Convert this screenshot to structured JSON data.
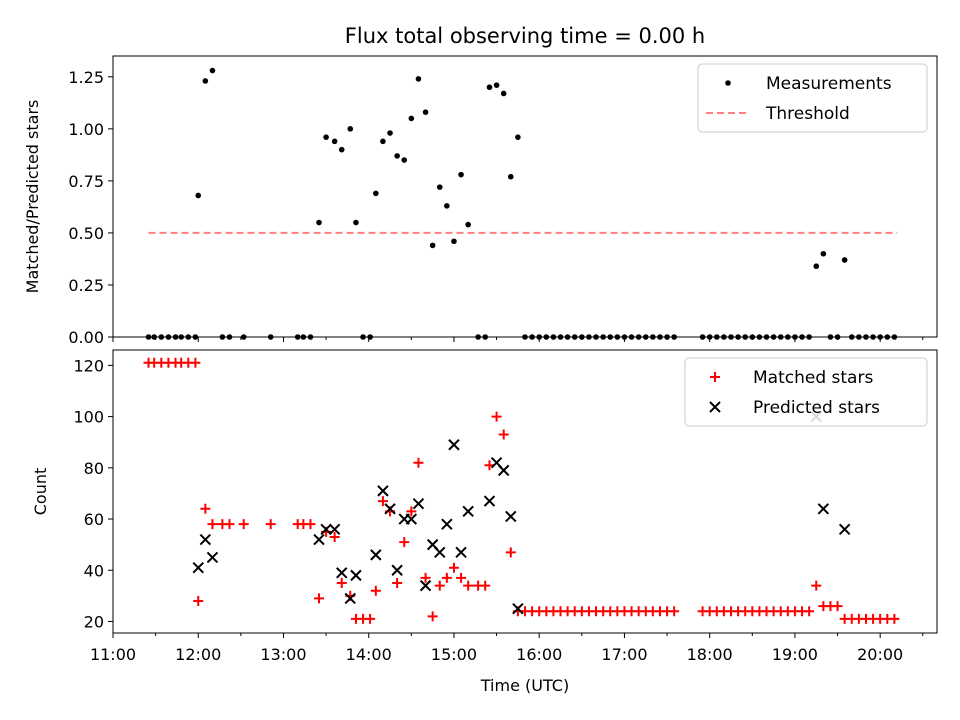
{
  "title": "Flux total observing time = 0.00 h",
  "colors": {
    "measurement": "#000000",
    "threshold": "#ff7f7f",
    "matched": "#ff0000",
    "predicted": "#000000"
  },
  "chart_data": [
    {
      "type": "scatter",
      "title": "Flux total observing time = 0.00 h",
      "xlabel": "",
      "ylabel": "Matched/Predicted stars",
      "xlim": [
        "11:00",
        "20:40"
      ],
      "ylim": [
        0,
        1.35
      ],
      "yticks": [
        "0.00",
        "0.25",
        "0.50",
        "0.75",
        "1.00",
        "1.25"
      ],
      "legend": {
        "placement": "top-right",
        "entries": [
          "Measurements",
          "Threshold"
        ]
      },
      "threshold": {
        "name": "Threshold",
        "value": 0.5,
        "x_start": "11:25",
        "x_end": "20:12"
      },
      "series": [
        {
          "name": "Measurements",
          "marker": "dot",
          "points": [
            [
              "11:25",
              0
            ],
            [
              "11:29",
              0
            ],
            [
              "11:34",
              0
            ],
            [
              "11:39",
              0
            ],
            [
              "11:44",
              0
            ],
            [
              "11:48",
              0
            ],
            [
              "11:53",
              0
            ],
            [
              "11:58",
              0
            ],
            [
              "12:00",
              0.68
            ],
            [
              "12:05",
              1.23
            ],
            [
              "12:10",
              1.28
            ],
            [
              "12:17",
              0
            ],
            [
              "12:22",
              0
            ],
            [
              "12:32",
              0
            ],
            [
              "12:51",
              0
            ],
            [
              "13:10",
              0
            ],
            [
              "13:14",
              0
            ],
            [
              "13:19",
              0
            ],
            [
              "13:25",
              0.55
            ],
            [
              "13:30",
              0.96
            ],
            [
              "13:36",
              0.94
            ],
            [
              "13:41",
              0.9
            ],
            [
              "13:47",
              1.0
            ],
            [
              "13:51",
              0.55
            ],
            [
              "13:56",
              0
            ],
            [
              "14:01",
              0
            ],
            [
              "14:05",
              0.69
            ],
            [
              "14:10",
              0.94
            ],
            [
              "14:15",
              0.98
            ],
            [
              "14:20",
              0.87
            ],
            [
              "14:25",
              0.85
            ],
            [
              "14:30",
              1.05
            ],
            [
              "14:35",
              1.24
            ],
            [
              "14:40",
              1.08
            ],
            [
              "14:45",
              0.44
            ],
            [
              "14:50",
              0.72
            ],
            [
              "14:55",
              0.63
            ],
            [
              "15:00",
              0.46
            ],
            [
              "15:05",
              0.78
            ],
            [
              "15:10",
              0.54
            ],
            [
              "15:17",
              0
            ],
            [
              "15:22",
              0
            ],
            [
              "15:25",
              1.2
            ],
            [
              "15:30",
              1.21
            ],
            [
              "15:35",
              1.17
            ],
            [
              "15:40",
              0.77
            ],
            [
              "15:45",
              0.96
            ],
            [
              "15:50",
              0
            ],
            [
              "15:55",
              0
            ],
            [
              "16:00",
              0
            ],
            [
              "16:05",
              0
            ],
            [
              "16:10",
              0
            ],
            [
              "16:15",
              0
            ],
            [
              "16:20",
              0
            ],
            [
              "16:25",
              0
            ],
            [
              "16:30",
              0
            ],
            [
              "16:35",
              0
            ],
            [
              "16:40",
              0
            ],
            [
              "16:45",
              0
            ],
            [
              "16:50",
              0
            ],
            [
              "16:55",
              0
            ],
            [
              "17:00",
              0
            ],
            [
              "17:05",
              0
            ],
            [
              "17:10",
              0
            ],
            [
              "17:15",
              0
            ],
            [
              "17:20",
              0
            ],
            [
              "17:25",
              0
            ],
            [
              "17:30",
              0
            ],
            [
              "17:35",
              0
            ],
            [
              "17:55",
              0
            ],
            [
              "18:00",
              0
            ],
            [
              "18:05",
              0
            ],
            [
              "18:10",
              0
            ],
            [
              "18:15",
              0
            ],
            [
              "18:20",
              0
            ],
            [
              "18:25",
              0
            ],
            [
              "18:30",
              0
            ],
            [
              "18:35",
              0
            ],
            [
              "18:40",
              0
            ],
            [
              "18:45",
              0
            ],
            [
              "18:50",
              0
            ],
            [
              "18:55",
              0
            ],
            [
              "19:00",
              0
            ],
            [
              "19:05",
              0
            ],
            [
              "19:10",
              0
            ],
            [
              "19:15",
              0.34
            ],
            [
              "19:20",
              0.4
            ],
            [
              "19:25",
              0
            ],
            [
              "19:30",
              0
            ],
            [
              "19:35",
              0.37
            ],
            [
              "19:40",
              0
            ],
            [
              "19:45",
              0
            ],
            [
              "19:50",
              0
            ],
            [
              "19:55",
              0
            ],
            [
              "20:00",
              0
            ],
            [
              "20:05",
              0
            ],
            [
              "20:10",
              0
            ]
          ]
        }
      ]
    },
    {
      "type": "scatter",
      "xlabel": "Time (UTC)",
      "ylabel": "Count",
      "xlim": [
        "11:00",
        "20:40"
      ],
      "ylim": [
        15.5,
        126
      ],
      "xticks": [
        "11:00",
        "12:00",
        "13:00",
        "14:00",
        "15:00",
        "16:00",
        "17:00",
        "18:00",
        "19:00",
        "20:00"
      ],
      "yticks": [
        "20",
        "40",
        "60",
        "80",
        "100",
        "120"
      ],
      "legend": {
        "placement": "top-right",
        "entries": [
          "Matched stars",
          "Predicted stars"
        ]
      },
      "series": [
        {
          "name": "Matched stars",
          "marker": "plus",
          "points": [
            [
              "11:25",
              121
            ],
            [
              "11:29",
              121
            ],
            [
              "11:34",
              121
            ],
            [
              "11:39",
              121
            ],
            [
              "11:44",
              121
            ],
            [
              "11:48",
              121
            ],
            [
              "11:53",
              121
            ],
            [
              "11:58",
              121
            ],
            [
              "12:00",
              28
            ],
            [
              "12:05",
              64
            ],
            [
              "12:10",
              58
            ],
            [
              "12:17",
              58
            ],
            [
              "12:22",
              58
            ],
            [
              "12:32",
              58
            ],
            [
              "12:51",
              58
            ],
            [
              "13:10",
              58
            ],
            [
              "13:14",
              58
            ],
            [
              "13:19",
              58
            ],
            [
              "13:25",
              29
            ],
            [
              "13:30",
              55
            ],
            [
              "13:36",
              53
            ],
            [
              "13:41",
              35
            ],
            [
              "13:47",
              30
            ],
            [
              "13:51",
              21
            ],
            [
              "13:56",
              21
            ],
            [
              "14:01",
              21
            ],
            [
              "14:05",
              32
            ],
            [
              "14:10",
              67
            ],
            [
              "14:15",
              63
            ],
            [
              "14:20",
              35
            ],
            [
              "14:25",
              51
            ],
            [
              "14:30",
              63
            ],
            [
              "14:35",
              82
            ],
            [
              "14:40",
              37
            ],
            [
              "14:45",
              22
            ],
            [
              "14:50",
              34
            ],
            [
              "14:55",
              37
            ],
            [
              "15:00",
              41
            ],
            [
              "15:05",
              37
            ],
            [
              "15:10",
              34
            ],
            [
              "15:17",
              34
            ],
            [
              "15:22",
              34
            ],
            [
              "15:25",
              81
            ],
            [
              "15:30",
              100
            ],
            [
              "15:35",
              93
            ],
            [
              "15:40",
              47
            ],
            [
              "15:45",
              24
            ],
            [
              "15:50",
              24
            ],
            [
              "15:55",
              24
            ],
            [
              "16:00",
              24
            ],
            [
              "16:05",
              24
            ],
            [
              "16:10",
              24
            ],
            [
              "16:15",
              24
            ],
            [
              "16:20",
              24
            ],
            [
              "16:25",
              24
            ],
            [
              "16:30",
              24
            ],
            [
              "16:35",
              24
            ],
            [
              "16:40",
              24
            ],
            [
              "16:45",
              24
            ],
            [
              "16:50",
              24
            ],
            [
              "16:55",
              24
            ],
            [
              "17:00",
              24
            ],
            [
              "17:05",
              24
            ],
            [
              "17:10",
              24
            ],
            [
              "17:15",
              24
            ],
            [
              "17:20",
              24
            ],
            [
              "17:25",
              24
            ],
            [
              "17:30",
              24
            ],
            [
              "17:35",
              24
            ],
            [
              "17:55",
              24
            ],
            [
              "18:00",
              24
            ],
            [
              "18:05",
              24
            ],
            [
              "18:10",
              24
            ],
            [
              "18:15",
              24
            ],
            [
              "18:20",
              24
            ],
            [
              "18:25",
              24
            ],
            [
              "18:30",
              24
            ],
            [
              "18:35",
              24
            ],
            [
              "18:40",
              24
            ],
            [
              "18:45",
              24
            ],
            [
              "18:50",
              24
            ],
            [
              "18:55",
              24
            ],
            [
              "19:00",
              24
            ],
            [
              "19:05",
              24
            ],
            [
              "19:10",
              24
            ],
            [
              "19:15",
              34
            ],
            [
              "19:20",
              26
            ],
            [
              "19:25",
              26
            ],
            [
              "19:30",
              26
            ],
            [
              "19:35",
              21
            ],
            [
              "19:40",
              21
            ],
            [
              "19:45",
              21
            ],
            [
              "19:50",
              21
            ],
            [
              "19:55",
              21
            ],
            [
              "20:00",
              21
            ],
            [
              "20:05",
              21
            ],
            [
              "20:10",
              21
            ]
          ]
        },
        {
          "name": "Predicted stars",
          "marker": "x",
          "points": [
            [
              "12:00",
              41
            ],
            [
              "12:05",
              52
            ],
            [
              "12:10",
              45
            ],
            [
              "13:25",
              52
            ],
            [
              "13:30",
              56
            ],
            [
              "13:36",
              56
            ],
            [
              "13:41",
              39
            ],
            [
              "13:47",
              29
            ],
            [
              "13:51",
              38
            ],
            [
              "14:05",
              46
            ],
            [
              "14:10",
              71
            ],
            [
              "14:15",
              64
            ],
            [
              "14:20",
              40
            ],
            [
              "14:25",
              60
            ],
            [
              "14:30",
              60
            ],
            [
              "14:35",
              66
            ],
            [
              "14:40",
              34
            ],
            [
              "14:45",
              50
            ],
            [
              "14:50",
              47
            ],
            [
              "14:55",
              58
            ],
            [
              "15:00",
              89
            ],
            [
              "15:05",
              47
            ],
            [
              "15:10",
              63
            ],
            [
              "15:25",
              67
            ],
            [
              "15:30",
              82
            ],
            [
              "15:35",
              79
            ],
            [
              "15:40",
              61
            ],
            [
              "15:45",
              25
            ],
            [
              "19:15",
              100
            ],
            [
              "19:20",
              64
            ],
            [
              "19:35",
              56
            ]
          ]
        }
      ]
    }
  ]
}
